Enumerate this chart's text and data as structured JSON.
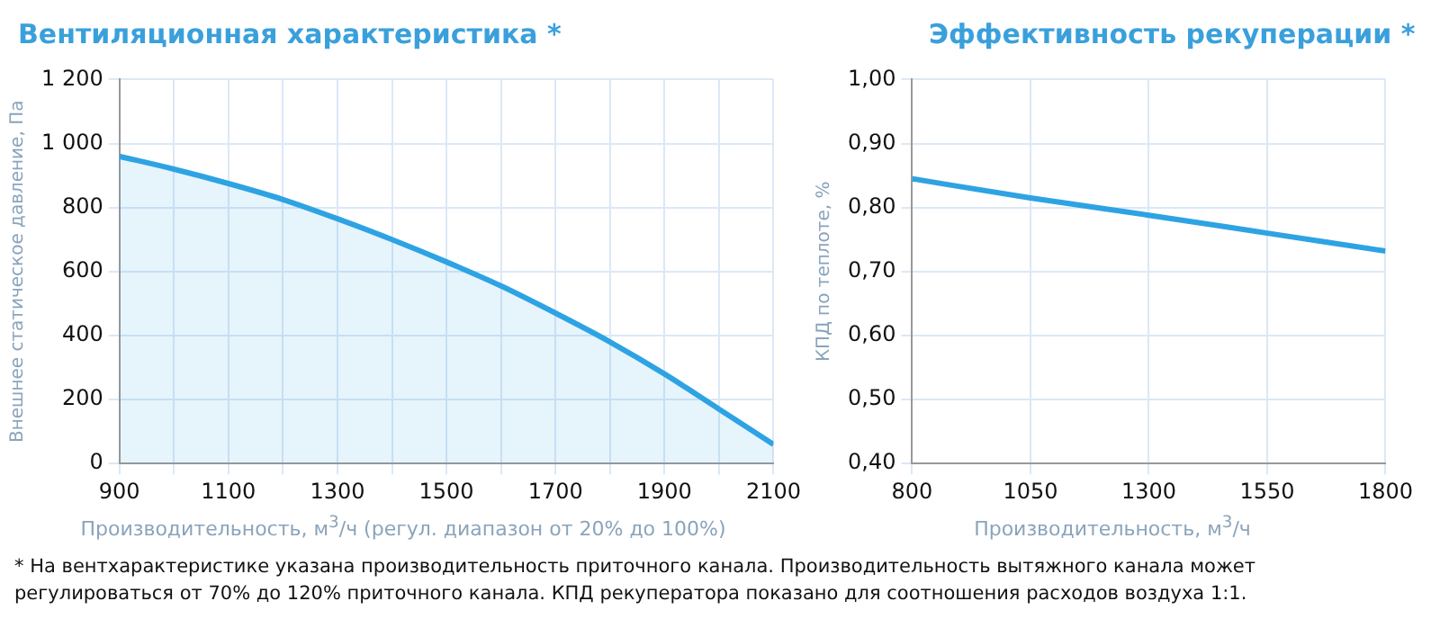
{
  "chart_data": [
    {
      "type": "area",
      "title": "Вентиляционная характеристика *",
      "xlabel": "Производительность, м$^{3}$/ч (регул. диапазон от 20% до 100%)",
      "ylabel": "Внешнее статическое давление, Па",
      "x": [
        900,
        1000,
        1100,
        1200,
        1300,
        1400,
        1500,
        1600,
        1700,
        1800,
        1900,
        2000,
        2100
      ],
      "series": [
        {
          "color": "#2ea3e3",
          "values": [
            960,
            920,
            875,
            825,
            765,
            700,
            630,
            555,
            470,
            380,
            280,
            170,
            60
          ]
        }
      ],
      "xlim": [
        900,
        2100
      ],
      "xticks": [
        900,
        {
          "value": 1000,
          "label": null
        },
        1100,
        {
          "value": 1200,
          "label": null
        },
        1300,
        {
          "value": 1400,
          "label": null
        },
        1500,
        {
          "value": 1600,
          "label": null
        },
        1700,
        {
          "value": 1800,
          "label": null
        },
        1900,
        {
          "value": 2000,
          "label": null
        },
        2100
      ],
      "ylim": [
        0,
        1200
      ],
      "yticks": [
        0,
        200,
        400,
        600,
        800,
        {
          "value": 1000,
          "label": "1 000"
        },
        {
          "value": 1200,
          "label": "1 200"
        }
      ],
      "grid": true,
      "annotations": [
        "* На вентхарактеристике указана производительность приточного канала. Производительность вытяжного канала может регулироваться от 70% до 120% приточного канала. КПД рекуператора показано для соотношения расходов воздуха 1:1."
      ]
    },
    {
      "type": "line",
      "title": "Эффективность рекуперации *",
      "xlabel": "Производительность, м$^{3}$/ч",
      "ylabel": "КПД по теплоте, %",
      "x": [
        800,
        1050,
        1300,
        1550,
        1800
      ],
      "series": [
        {
          "color": "#2ea3e3",
          "values": [
            0.845,
            0.815,
            0.788,
            0.76,
            0.732
          ]
        }
      ],
      "xlim": [
        800,
        1800
      ],
      "xticks": [
        800,
        1050,
        1300,
        1550,
        1800
      ],
      "ylim": [
        0.4,
        1.0
      ],
      "yticks": [
        {
          "value": 0.4,
          "label": "0,40"
        },
        {
          "value": 0.5,
          "label": "0,50"
        },
        {
          "value": 0.6,
          "label": "0,60"
        },
        {
          "value": 0.7,
          "label": "0,70"
        },
        {
          "value": 0.8,
          "label": "0,80"
        },
        {
          "value": 0.9,
          "label": "0,90"
        },
        {
          "value": 1.0,
          "label": "1,00"
        }
      ],
      "grid": true
    }
  ]
}
